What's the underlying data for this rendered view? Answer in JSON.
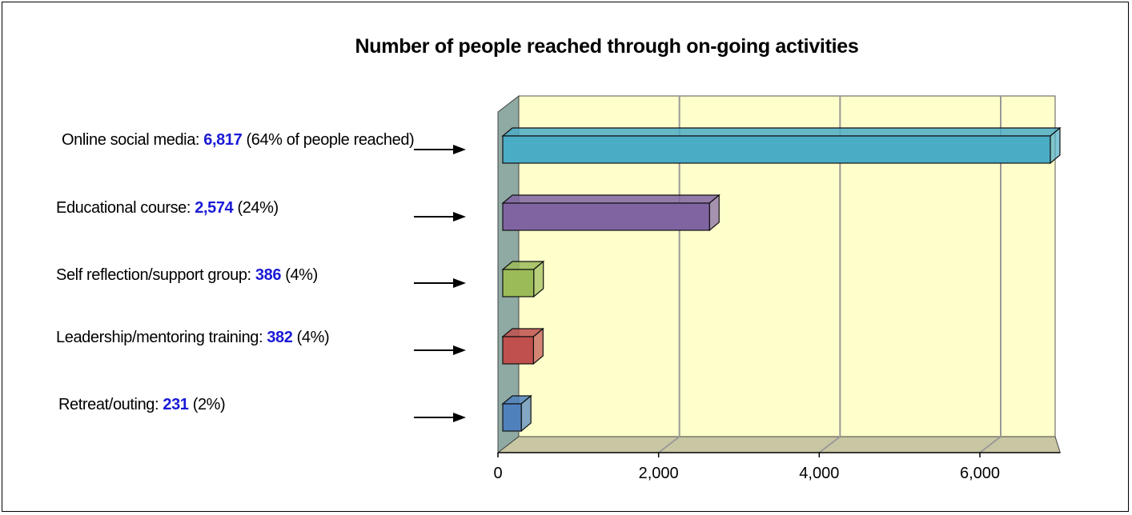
{
  "chart_data": {
    "type": "bar",
    "orientation": "horizontal",
    "style": "3d",
    "title": "Number of people reached through on-going activities",
    "xlim": [
      0,
      7000
    ],
    "ticks": [
      {
        "value": 0,
        "label": "0"
      },
      {
        "value": 2000,
        "label": "2,000"
      },
      {
        "value": 4000,
        "label": "4,000"
      },
      {
        "value": 6000,
        "label": "6,000"
      }
    ],
    "grid": true,
    "colors": {
      "plot_background": "#ffffcc",
      "wall": "#8fa9a3",
      "floor": "#c9c7a3",
      "value_text": "#1a1ad6"
    },
    "categories": [
      {
        "label": "Online social media: ",
        "value": 6817,
        "value_text": "6,817",
        "suffix": " (64% of people reached)",
        "color": "#4bacc6"
      },
      {
        "label": "Educational course: ",
        "value": 2574,
        "value_text": "2,574",
        "suffix": " (24%)",
        "color": "#8064a2"
      },
      {
        "label": "Self reflection/support group: ",
        "value": 386,
        "value_text": "386",
        "suffix": " (4%)",
        "color": "#9bbb59"
      },
      {
        "label": "Leadership/mentoring training: ",
        "value": 382,
        "value_text": "382",
        "suffix": " (4%)",
        "color": "#c0504d"
      },
      {
        "label": "Retreat/outing: ",
        "value": 231,
        "value_text": "231",
        "suffix": " (2%)",
        "color": "#4f81bd"
      }
    ]
  }
}
